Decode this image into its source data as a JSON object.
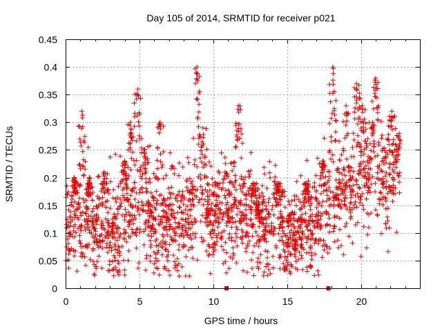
{
  "chart_data": {
    "type": "scatter",
    "title": "Day 105 of 2014, SRMTID for receiver p021",
    "xlabel": "GPS time / hours",
    "ylabel": "SRMTID / TECUs",
    "xlim": [
      0,
      24
    ],
    "ylim": [
      0,
      0.45
    ],
    "xticks": [
      0,
      5,
      10,
      15,
      20
    ],
    "xtick_labels": [
      "0",
      "5",
      "10",
      "15",
      "20"
    ],
    "yticks": [
      0,
      0.05,
      0.1,
      0.15,
      0.2,
      0.25,
      0.3,
      0.35,
      0.4,
      0.45
    ],
    "ytick_labels": [
      "0",
      "0.05",
      "0.1",
      "0.15",
      "0.2",
      "0.25",
      "0.3",
      "0.35",
      "0.4",
      "0.45"
    ],
    "grid": true,
    "marker_color": "#e00000",
    "gap_markers_x": [
      10.9,
      17.8
    ],
    "series": [
      {
        "name": "SRMTID",
        "trend": {
          "x": [
            0,
            1,
            2,
            3,
            4,
            5,
            6,
            7,
            8,
            9,
            10,
            11,
            12,
            13,
            14,
            15,
            16,
            17,
            18,
            19,
            20,
            21,
            22,
            22.7
          ],
          "y": [
            0.1,
            0.13,
            0.11,
            0.1,
            0.12,
            0.14,
            0.13,
            0.11,
            0.13,
            0.15,
            0.13,
            0.15,
            0.14,
            0.12,
            0.12,
            0.1,
            0.11,
            0.12,
            0.16,
            0.18,
            0.18,
            0.19,
            0.2,
            0.19
          ]
        },
        "spread": 0.045,
        "count": 2400,
        "peaks": [
          {
            "x": 0.6,
            "y": 0.2
          },
          {
            "x": 1.1,
            "y": 0.32
          },
          {
            "x": 1.6,
            "y": 0.2
          },
          {
            "x": 2.6,
            "y": 0.21
          },
          {
            "x": 4.0,
            "y": 0.23
          },
          {
            "x": 4.4,
            "y": 0.3
          },
          {
            "x": 4.9,
            "y": 0.36
          },
          {
            "x": 5.3,
            "y": 0.25
          },
          {
            "x": 6.4,
            "y": 0.3
          },
          {
            "x": 8.9,
            "y": 0.4
          },
          {
            "x": 9.3,
            "y": 0.29
          },
          {
            "x": 11.7,
            "y": 0.33
          },
          {
            "x": 12.7,
            "y": 0.19
          },
          {
            "x": 14.4,
            "y": 0.19
          },
          {
            "x": 16.3,
            "y": 0.19
          },
          {
            "x": 17.4,
            "y": 0.23
          },
          {
            "x": 18.1,
            "y": 0.4
          },
          {
            "x": 19.0,
            "y": 0.33
          },
          {
            "x": 19.7,
            "y": 0.37
          },
          {
            "x": 20.1,
            "y": 0.33
          },
          {
            "x": 20.8,
            "y": 0.3
          },
          {
            "x": 21.0,
            "y": 0.38
          },
          {
            "x": 22.1,
            "y": 0.32
          },
          {
            "x": 22.6,
            "y": 0.28
          }
        ]
      }
    ]
  }
}
